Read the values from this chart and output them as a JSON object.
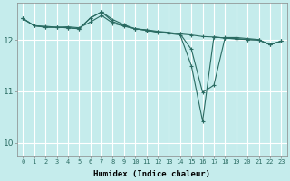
{
  "xlabel": "Humidex (Indice chaleur)",
  "bg_color": "#c5ecec",
  "grid_color": "#ffffff",
  "line_color": "#2a6b62",
  "xlim": [
    -0.5,
    23.5
  ],
  "ylim": [
    9.75,
    12.72
  ],
  "yticks": [
    10,
    11,
    12
  ],
  "xtick_labels": [
    "0",
    "1",
    "2",
    "3",
    "4",
    "5",
    "6",
    "7",
    "8",
    "9",
    "10",
    "11",
    "12",
    "13",
    "14",
    "15",
    "16",
    "17",
    "18",
    "19",
    "20",
    "21",
    "22",
    "23"
  ],
  "line1_x": [
    0,
    1,
    2,
    3,
    4,
    5,
    6,
    7,
    8,
    9,
    10,
    11,
    12,
    13,
    14,
    15,
    16,
    17,
    18,
    19,
    20,
    21,
    22,
    23
  ],
  "line1_y": [
    12.42,
    12.28,
    12.27,
    12.25,
    12.26,
    12.24,
    12.35,
    12.48,
    12.33,
    12.27,
    12.22,
    12.19,
    12.16,
    12.14,
    12.12,
    12.1,
    12.07,
    12.06,
    12.04,
    12.03,
    12.01,
    12.0,
    11.91,
    11.98
  ],
  "line2_x": [
    0,
    1,
    2,
    3,
    4,
    5,
    6,
    7,
    8,
    9,
    10,
    11,
    12,
    13,
    14,
    15,
    16,
    17,
    18,
    19,
    20,
    21,
    22,
    23
  ],
  "line2_y": [
    12.42,
    12.28,
    12.25,
    12.25,
    12.24,
    12.22,
    12.43,
    12.55,
    12.4,
    12.3,
    12.22,
    12.2,
    12.17,
    12.15,
    12.12,
    11.82,
    10.98,
    11.12,
    12.05,
    12.05,
    12.03,
    12.01,
    11.91,
    11.98
  ],
  "line3_x": [
    0,
    1,
    2,
    3,
    4,
    5,
    6,
    7,
    8,
    9,
    10,
    11,
    12,
    13,
    14,
    15,
    16,
    17,
    18,
    19,
    20,
    21,
    22,
    23
  ],
  "line3_y": [
    12.42,
    12.28,
    12.25,
    12.25,
    12.24,
    12.22,
    12.43,
    12.55,
    12.36,
    12.28,
    12.22,
    12.19,
    12.15,
    12.13,
    12.1,
    11.5,
    10.42,
    12.06,
    12.04,
    12.02,
    12.01,
    12.0,
    11.91,
    11.98
  ]
}
